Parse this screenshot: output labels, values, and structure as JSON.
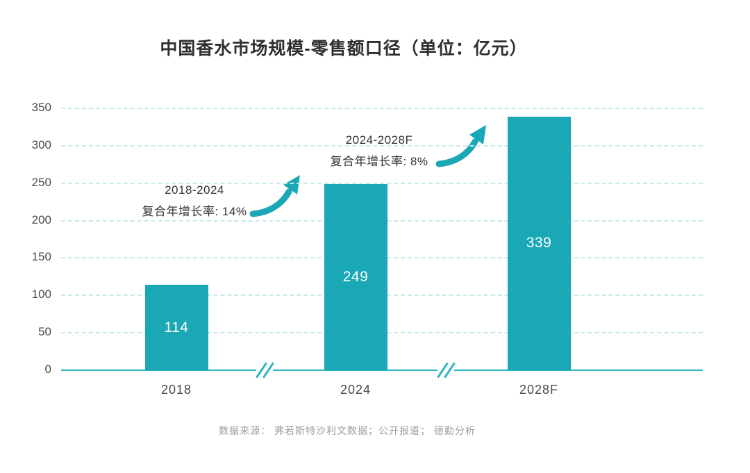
{
  "title": "中国香水市场规模-零售额口径（单位：亿元）",
  "footer": "数据来源： 弗若斯特沙利文数据；公开报道； 德勤分析",
  "colors": {
    "bar": "#1AA7B6",
    "grid": "#CBE9ED",
    "axis": "#2FB4C2",
    "bar_label": "#FFFFFF",
    "text": "#333333",
    "tick_text": "#4A4A4A",
    "footer_text": "#9C9C9C"
  },
  "chart_data": {
    "type": "bar",
    "title": "中国香水市场规模-零售额口径（单位：亿元）",
    "unit_label": "亿元",
    "categories": [
      "2018",
      "2024",
      "2028F"
    ],
    "values": [
      114,
      249,
      339
    ],
    "xlabel": "",
    "ylabel": "",
    "ylim": [
      0,
      350
    ],
    "yticks": [
      0,
      50,
      100,
      150,
      200,
      250,
      300,
      350
    ],
    "grid": "horizontal-dashed",
    "legend": "none",
    "axis_breaks_between_categories": true,
    "annotations": [
      {
        "line1": "2018-2024",
        "line2": "复合年增长率: 14%"
      },
      {
        "line1": "2024-2028F",
        "line2": "复合年增长率: 8%"
      }
    ],
    "source_note": "数据来源： 弗若斯特沙利文数据；公开报道； 德勤分析"
  }
}
